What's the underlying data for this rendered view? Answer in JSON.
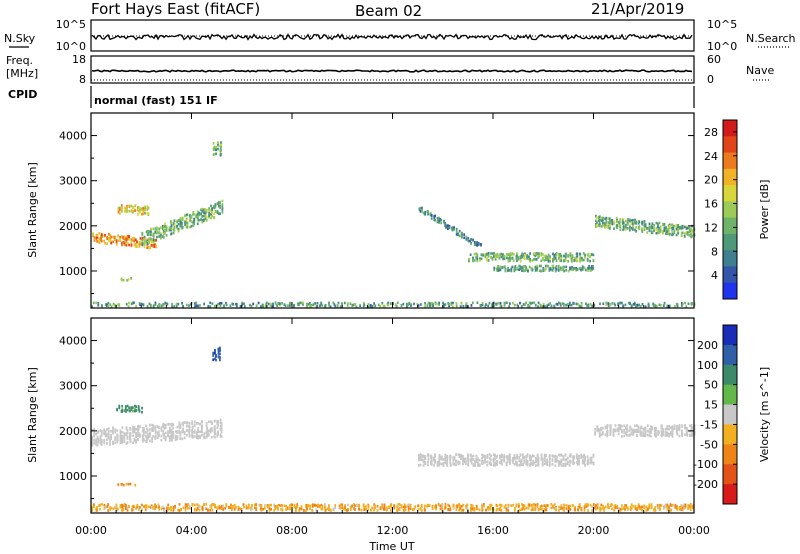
{
  "header": {
    "title": "Fort Hays East (fitACF)",
    "beam": "Beam 02",
    "date": "21/Apr/2019"
  },
  "strips": {
    "nsky_label": "N.Sky",
    "nsearch_label": "N.Search",
    "nsky_ticks": [
      "10^5",
      "10^0"
    ],
    "nsearch_ticks": [
      "10^5",
      "10^0"
    ],
    "freq_label": "Freq.",
    "freq_unit": "[MHz]",
    "freq_ticks": [
      "18",
      "8"
    ],
    "nave_label": "Nave",
    "nave_ticks": [
      "60",
      "0"
    ],
    "cpid_label": "CPID",
    "cpid_value": "normal (fast) 151 IF"
  },
  "chart_data": [
    {
      "type": "heatmap",
      "panel": "power",
      "ylabel": "Slant Range [km]",
      "xlabel": "",
      "xlim": [
        "00:00",
        "24:00"
      ],
      "ylim": [
        180,
        4500
      ],
      "yticks": [
        1000,
        2000,
        3000,
        4000
      ],
      "xticks": [
        "00:00",
        "04:00",
        "08:00",
        "12:00",
        "16:00",
        "20:00",
        "00:00"
      ],
      "colorbar": {
        "label": "Power [dB]",
        "ticks": [
          "4",
          "8",
          "12",
          "16",
          "20",
          "24",
          "28"
        ],
        "tick_values": [
          4,
          8,
          12,
          16,
          20,
          24,
          28
        ],
        "range": [
          0,
          30
        ],
        "colors": [
          "#2233ee",
          "#3355aa",
          "#3f7f8f",
          "#4e9a78",
          "#6fb36a",
          "#9ccc55",
          "#d8d63b",
          "#f2b227",
          "#ee7a1e",
          "#e04418",
          "#d21a1a"
        ]
      },
      "features": [
        {
          "t_start": 0.0,
          "t_end": 2.6,
          "range_center": 1750,
          "width_km": 220,
          "slope_km_per_h": -60,
          "value": 22
        },
        {
          "t_start": 1.0,
          "t_end": 2.3,
          "range_center": 2350,
          "width_km": 200,
          "slope_km_per_h": 0,
          "value": 18
        },
        {
          "t_start": 2.0,
          "t_end": 5.2,
          "range_center": 1700,
          "width_km": 300,
          "slope_km_per_h": 220,
          "value": 12
        },
        {
          "t_start": 1.0,
          "t_end": 1.8,
          "range_center": 820,
          "width_km": 60,
          "slope_km_per_h": 0,
          "value": 14
        },
        {
          "t_start": 4.8,
          "t_end": 5.2,
          "range_center": 3700,
          "width_km": 300,
          "slope_km_per_h": 0,
          "value": 12
        },
        {
          "t_start": 13.0,
          "t_end": 15.5,
          "range_center": 2400,
          "width_km": 120,
          "slope_km_per_h": -350,
          "value": 8
        },
        {
          "t_start": 15.0,
          "t_end": 20.0,
          "range_center": 1300,
          "width_km": 180,
          "slope_km_per_h": 0,
          "value": 12
        },
        {
          "t_start": 16.0,
          "t_end": 20.0,
          "range_center": 1050,
          "width_km": 120,
          "slope_km_per_h": 0,
          "value": 10
        },
        {
          "t_start": 20.0,
          "t_end": 24.0,
          "range_center": 2100,
          "width_km": 250,
          "slope_km_per_h": -60,
          "value": 12
        },
        {
          "t_start": 0.0,
          "t_end": 24.0,
          "range_center": 250,
          "width_km": 90,
          "slope_km_per_h": 0,
          "value": 10
        }
      ]
    },
    {
      "type": "heatmap",
      "panel": "velocity",
      "ylabel": "Slant Range [km]",
      "xlabel": "Time UT",
      "xlim": [
        "00:00",
        "24:00"
      ],
      "ylim": [
        180,
        4500
      ],
      "yticks": [
        1000,
        2000,
        3000,
        4000
      ],
      "xticks": [
        "00:00",
        "04:00",
        "08:00",
        "12:00",
        "16:00",
        "20:00",
        "00:00"
      ],
      "colorbar": {
        "label": "Velocity [m s^-1]",
        "ticks": [
          "200",
          "100",
          "50",
          "15",
          "-15",
          "-50",
          "-100",
          "-200"
        ],
        "tick_values": [
          200,
          100,
          50,
          15,
          -15,
          -50,
          -100,
          -200
        ],
        "colors": [
          "#1a2db8",
          "#2f5fa8",
          "#3c8a6a",
          "#62b84a",
          "#c8c8c8",
          "#f2b020",
          "#ee8418",
          "#e45316",
          "#d81a1a"
        ]
      },
      "features": [
        {
          "t_start": 0.0,
          "t_end": 5.2,
          "range_center": 1850,
          "width_km": 380,
          "slope_km_per_h": 40,
          "value": 0
        },
        {
          "t_start": 1.0,
          "t_end": 2.0,
          "range_center": 2480,
          "width_km": 140,
          "slope_km_per_h": 0,
          "value": 70
        },
        {
          "t_start": 1.0,
          "t_end": 1.8,
          "range_center": 820,
          "width_km": 60,
          "slope_km_per_h": 0,
          "value": -60
        },
        {
          "t_start": 4.8,
          "t_end": 5.1,
          "range_center": 3700,
          "width_km": 280,
          "slope_km_per_h": 0,
          "value": 180
        },
        {
          "t_start": 13.0,
          "t_end": 20.0,
          "range_center": 1350,
          "width_km": 250,
          "slope_km_per_h": 0,
          "value": 0
        },
        {
          "t_start": 20.0,
          "t_end": 24.0,
          "range_center": 2000,
          "width_km": 250,
          "slope_km_per_h": 0,
          "value": 0
        },
        {
          "t_start": 0.0,
          "t_end": 24.0,
          "range_center": 300,
          "width_km": 140,
          "slope_km_per_h": 0,
          "value": -40
        }
      ]
    }
  ]
}
